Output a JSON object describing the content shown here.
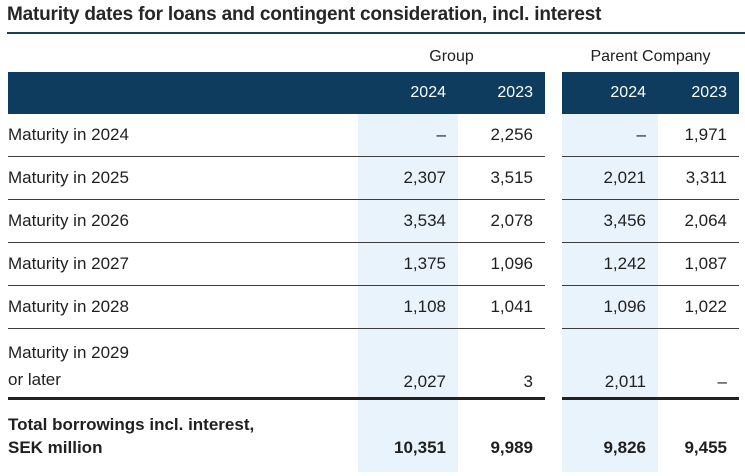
{
  "title": "Maturity dates for loans and contingent consideration, incl. interest",
  "table": {
    "column_groups": [
      {
        "label": "Group"
      },
      {
        "label": "Parent Company"
      }
    ],
    "year_headers": [
      "2024",
      "2023",
      "2024",
      "2023"
    ],
    "rows": [
      {
        "label": "Maturity in 2024",
        "values": [
          "–",
          "2,256",
          "–",
          "1,971"
        ]
      },
      {
        "label": "Maturity in 2025",
        "values": [
          "2,307",
          "3,515",
          "2,021",
          "3,311"
        ]
      },
      {
        "label": "Maturity in 2026",
        "values": [
          "3,534",
          "2,078",
          "3,456",
          "2,064"
        ]
      },
      {
        "label": "Maturity in 2027",
        "values": [
          "1,375",
          "1,096",
          "1,242",
          "1,087"
        ]
      },
      {
        "label": "Maturity in 2028",
        "values": [
          "1,108",
          "1,041",
          "1,096",
          "1,022"
        ]
      },
      {
        "label": "Maturity in 2029",
        "label2": "or later",
        "values": [
          "2,027",
          "3",
          "2,011",
          "–"
        ]
      }
    ],
    "total_row": {
      "label": "Total borrowings incl. interest,",
      "label2": "SEK million",
      "values": [
        "10,351",
        "9,989",
        "9,826",
        "9,455"
      ]
    }
  },
  "colors": {
    "header_band": "#0e3c5e",
    "current_year_column": "#e9f3fb",
    "title_rule": "#15415f",
    "row_divider": "#3d3d3d",
    "total_rule": "#222222",
    "text": "#1f1f1f"
  }
}
